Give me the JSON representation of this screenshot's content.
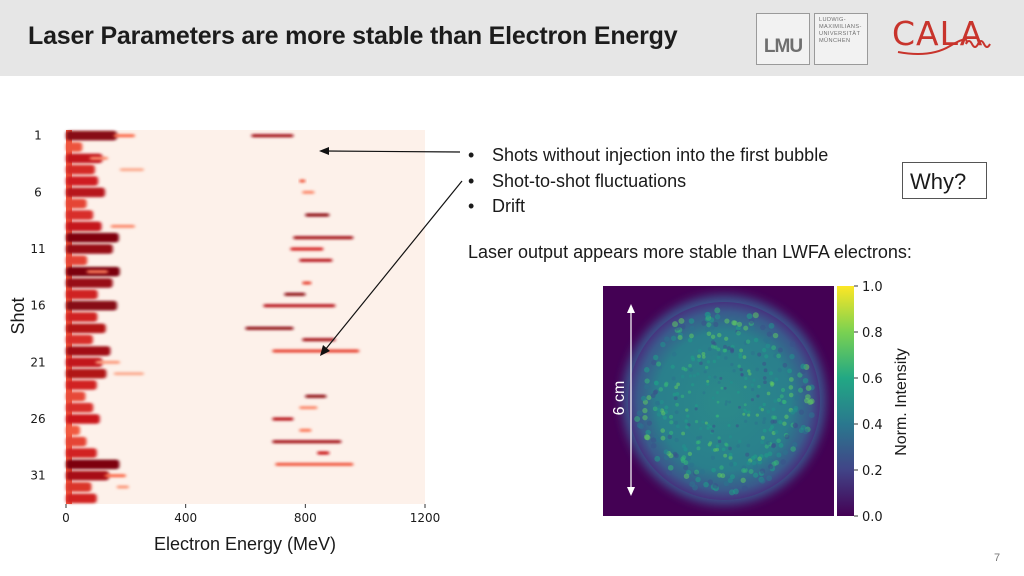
{
  "slide": {
    "title": "Laser Parameters are more stable than Electron Energy",
    "page_number": "7"
  },
  "logos": {
    "lmu_mark": "LMU",
    "lmu_name_lines": [
      "LUDWIG-",
      "MAXIMILIANS-",
      "UNIVERSITÄT",
      "MÜNCHEN"
    ],
    "cala": "CALA"
  },
  "bullets": [
    {
      "marker": "•",
      "text": "Shots without injection into the first bubble"
    },
    {
      "marker": "•",
      "text": "Shot-to-shot fluctuations"
    },
    {
      "marker": "•",
      "text": "Drift"
    }
  ],
  "why_box": "Why?",
  "laser_note": "Laser output appears more stable than LWFA electrons:",
  "colors": {
    "header_bg": "#e6e6e6",
    "spectra_low": "#fff5f0",
    "spectra_high": "#67000d",
    "viridis_low": "#440154",
    "viridis_high": "#fde725"
  },
  "chart_data": [
    {
      "type": "heatmap",
      "xlabel": "Electron Energy (MeV)",
      "ylabel": "Shot",
      "xlim": [
        0,
        1200
      ],
      "x_ticks": [
        0,
        400,
        800,
        1200
      ],
      "y_ticks": [
        1,
        6,
        11,
        16,
        21,
        26,
        31
      ],
      "shots": [
        1,
        33
      ],
      "colormap": "Reds",
      "streaks": [
        {
          "shot": 1,
          "energy_from": 620,
          "energy_to": 760,
          "intensity": 0.85
        },
        {
          "shot": 1,
          "energy_from": 160,
          "energy_to": 230,
          "intensity": 0.5
        },
        {
          "shot": 3,
          "energy_from": 80,
          "energy_to": 140,
          "intensity": 0.4
        },
        {
          "shot": 4,
          "energy_from": 180,
          "energy_to": 260,
          "intensity": 0.3
        },
        {
          "shot": 5,
          "energy_from": 780,
          "energy_to": 800,
          "intensity": 0.55
        },
        {
          "shot": 6,
          "energy_from": 790,
          "energy_to": 830,
          "intensity": 0.4
        },
        {
          "shot": 8,
          "energy_from": 800,
          "energy_to": 880,
          "intensity": 0.9
        },
        {
          "shot": 9,
          "energy_from": 150,
          "energy_to": 230,
          "intensity": 0.4
        },
        {
          "shot": 10,
          "energy_from": 760,
          "energy_to": 960,
          "intensity": 0.85
        },
        {
          "shot": 11,
          "energy_from": 750,
          "energy_to": 860,
          "intensity": 0.7
        },
        {
          "shot": 12,
          "energy_from": 780,
          "energy_to": 890,
          "intensity": 0.8
        },
        {
          "shot": 13,
          "energy_from": 70,
          "energy_to": 140,
          "intensity": 0.45
        },
        {
          "shot": 14,
          "energy_from": 790,
          "energy_to": 820,
          "intensity": 0.6
        },
        {
          "shot": 15,
          "energy_from": 730,
          "energy_to": 800,
          "intensity": 0.9
        },
        {
          "shot": 16,
          "energy_from": 660,
          "energy_to": 900,
          "intensity": 0.8
        },
        {
          "shot": 18,
          "energy_from": 600,
          "energy_to": 760,
          "intensity": 0.9
        },
        {
          "shot": 19,
          "energy_from": 790,
          "energy_to": 900,
          "intensity": 0.85
        },
        {
          "shot": 20,
          "energy_from": 690,
          "energy_to": 980,
          "intensity": 0.6
        },
        {
          "shot": 21,
          "energy_from": 100,
          "energy_to": 180,
          "intensity": 0.35
        },
        {
          "shot": 22,
          "energy_from": 160,
          "energy_to": 260,
          "intensity": 0.3
        },
        {
          "shot": 24,
          "energy_from": 800,
          "energy_to": 870,
          "intensity": 0.9
        },
        {
          "shot": 25,
          "energy_from": 780,
          "energy_to": 840,
          "intensity": 0.4
        },
        {
          "shot": 26,
          "energy_from": 690,
          "energy_to": 760,
          "intensity": 0.8
        },
        {
          "shot": 27,
          "energy_from": 780,
          "energy_to": 820,
          "intensity": 0.45
        },
        {
          "shot": 28,
          "energy_from": 690,
          "energy_to": 920,
          "intensity": 0.85
        },
        {
          "shot": 29,
          "energy_from": 840,
          "energy_to": 880,
          "intensity": 0.75
        },
        {
          "shot": 30,
          "energy_from": 700,
          "energy_to": 960,
          "intensity": 0.55
        },
        {
          "shot": 31,
          "energy_from": 130,
          "energy_to": 200,
          "intensity": 0.5
        },
        {
          "shot": 32,
          "energy_from": 170,
          "energy_to": 210,
          "intensity": 0.35
        }
      ]
    },
    {
      "type": "heatmap",
      "description_shown": "laser beam profile",
      "colorbar_label": "Norm. Intensity",
      "colorbar_ticks": [
        0.0,
        0.2,
        0.4,
        0.6,
        0.8,
        1.0
      ],
      "colorbar_tick_labels": [
        "0.0",
        "0.2",
        "0.4",
        "0.6",
        "0.8",
        "1.0"
      ],
      "scale_label": "6 cm",
      "colormap": "viridis",
      "typical_intensity": 0.55
    }
  ]
}
